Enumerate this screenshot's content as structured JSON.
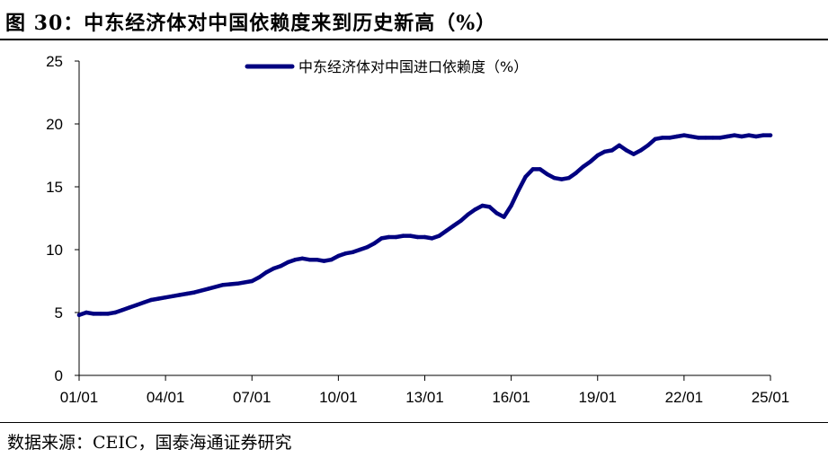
{
  "figure": {
    "title": "图 30：中东经济体对中国依赖度来到历史新高（%）",
    "source": "数据来源：CEIC，国泰海通证券研究"
  },
  "chart_data": {
    "type": "line",
    "title": "",
    "xlabel": "",
    "ylabel": "",
    "ylim": [
      0,
      25
    ],
    "yticks": [
      0,
      5,
      10,
      15,
      20,
      25
    ],
    "xlim": [
      2001.0,
      2025.0
    ],
    "xticks": [
      {
        "label": "01/01",
        "value": 2001.0
      },
      {
        "label": "04/01",
        "value": 2004.0
      },
      {
        "label": "07/01",
        "value": 2007.0
      },
      {
        "label": "10/01",
        "value": 2010.0
      },
      {
        "label": "13/01",
        "value": 2013.0
      },
      {
        "label": "16/01",
        "value": 2016.0
      },
      {
        "label": "19/01",
        "value": 2019.0
      },
      {
        "label": "22/01",
        "value": 2022.0
      },
      {
        "label": "25/01",
        "value": 2025.0
      }
    ],
    "grid": false,
    "legend_position": "top",
    "series": [
      {
        "name": "中东经济体对中国进口依赖度（%）",
        "color": "#000080",
        "x": [
          2001.0,
          2001.25,
          2001.5,
          2001.75,
          2002.0,
          2002.25,
          2002.5,
          2002.75,
          2003.0,
          2003.25,
          2003.5,
          2003.75,
          2004.0,
          2004.25,
          2004.5,
          2004.75,
          2005.0,
          2005.5,
          2006.0,
          2006.5,
          2007.0,
          2007.25,
          2007.5,
          2007.75,
          2008.0,
          2008.25,
          2008.5,
          2008.75,
          2009.0,
          2009.25,
          2009.5,
          2009.75,
          2010.0,
          2010.25,
          2010.5,
          2010.75,
          2011.0,
          2011.25,
          2011.5,
          2011.75,
          2012.0,
          2012.25,
          2012.5,
          2012.75,
          2013.0,
          2013.25,
          2013.5,
          2013.75,
          2014.0,
          2014.25,
          2014.5,
          2014.75,
          2015.0,
          2015.25,
          2015.5,
          2015.75,
          2016.0,
          2016.25,
          2016.5,
          2016.75,
          2017.0,
          2017.25,
          2017.5,
          2017.75,
          2018.0,
          2018.25,
          2018.5,
          2018.75,
          2019.0,
          2019.25,
          2019.5,
          2019.75,
          2020.0,
          2020.25,
          2020.5,
          2020.75,
          2021.0,
          2021.25,
          2021.5,
          2021.75,
          2022.0,
          2022.25,
          2022.5,
          2022.75,
          2023.0,
          2023.25,
          2023.5,
          2023.75,
          2024.0,
          2024.25,
          2024.5,
          2024.75,
          2025.0
        ],
        "values": [
          4.8,
          5.0,
          4.9,
          4.9,
          4.9,
          5.0,
          5.2,
          5.4,
          5.6,
          5.8,
          6.0,
          6.1,
          6.2,
          6.3,
          6.4,
          6.5,
          6.6,
          6.9,
          7.2,
          7.3,
          7.5,
          7.8,
          8.2,
          8.5,
          8.7,
          9.0,
          9.2,
          9.3,
          9.2,
          9.2,
          9.1,
          9.2,
          9.5,
          9.7,
          9.8,
          10.0,
          10.2,
          10.5,
          10.9,
          11.0,
          11.0,
          11.1,
          11.1,
          11.0,
          11.0,
          10.9,
          11.1,
          11.5,
          11.9,
          12.3,
          12.8,
          13.2,
          13.5,
          13.4,
          12.9,
          12.6,
          13.5,
          14.7,
          15.8,
          16.4,
          16.4,
          16.0,
          15.7,
          15.6,
          15.7,
          16.1,
          16.6,
          17.0,
          17.5,
          17.8,
          17.9,
          18.3,
          17.9,
          17.6,
          17.9,
          18.3,
          18.8,
          18.9,
          18.9,
          19.0,
          19.1,
          19.0,
          18.9,
          18.9,
          18.9,
          18.9,
          19.0,
          19.1,
          19.0,
          19.1,
          19.0,
          19.1,
          19.1
        ]
      }
    ]
  }
}
